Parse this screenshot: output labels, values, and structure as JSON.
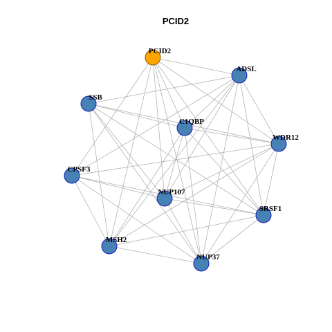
{
  "title": "PCID2",
  "nodes": [
    {
      "label": "PCID2"
    },
    {
      "label": "ADSL"
    },
    {
      "label": "SSB"
    },
    {
      "label": "C1QBP"
    },
    {
      "label": "WDR12"
    },
    {
      "label": "CPSF3"
    },
    {
      "label": "NUP107"
    },
    {
      "label": "SRSF1"
    },
    {
      "label": "MSH2"
    },
    {
      "label": "NUP37"
    }
  ]
}
